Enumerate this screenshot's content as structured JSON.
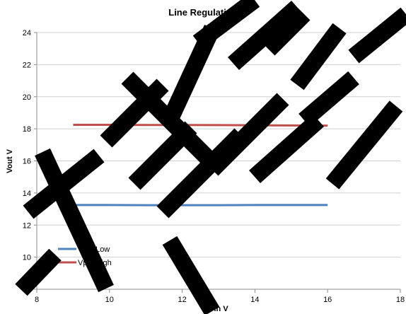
{
  "chart_data": {
    "type": "line",
    "title": "Line Regulation",
    "xlabel": "Vin V",
    "ylabel": "Vout V",
    "xlim": [
      8,
      18
    ],
    "ylim": [
      8,
      24
    ],
    "x_ticks": [
      8,
      10,
      12,
      14,
      16,
      18
    ],
    "y_ticks": [
      8,
      10,
      12,
      14,
      16,
      18,
      20,
      22,
      24
    ],
    "grid": "horizontal",
    "legend_position": "bottom-left",
    "series": [
      {
        "name": "Vpol Low",
        "color": "#4f81bd",
        "x": [
          9,
          10,
          11,
          12,
          13,
          14,
          15,
          16
        ],
        "y": [
          13.25,
          13.25,
          13.24,
          13.24,
          13.24,
          13.25,
          13.25,
          13.25
        ]
      },
      {
        "name": "Vpol High",
        "color": "#c0504d",
        "x": [
          9,
          10,
          11,
          12,
          13,
          14,
          15,
          16
        ],
        "y": [
          18.25,
          18.25,
          18.24,
          18.24,
          18.23,
          18.22,
          18.21,
          18.2
        ]
      }
    ]
  },
  "watermark": {
    "text": "NOT RELEASED FOR NEW",
    "color": "#000000"
  }
}
